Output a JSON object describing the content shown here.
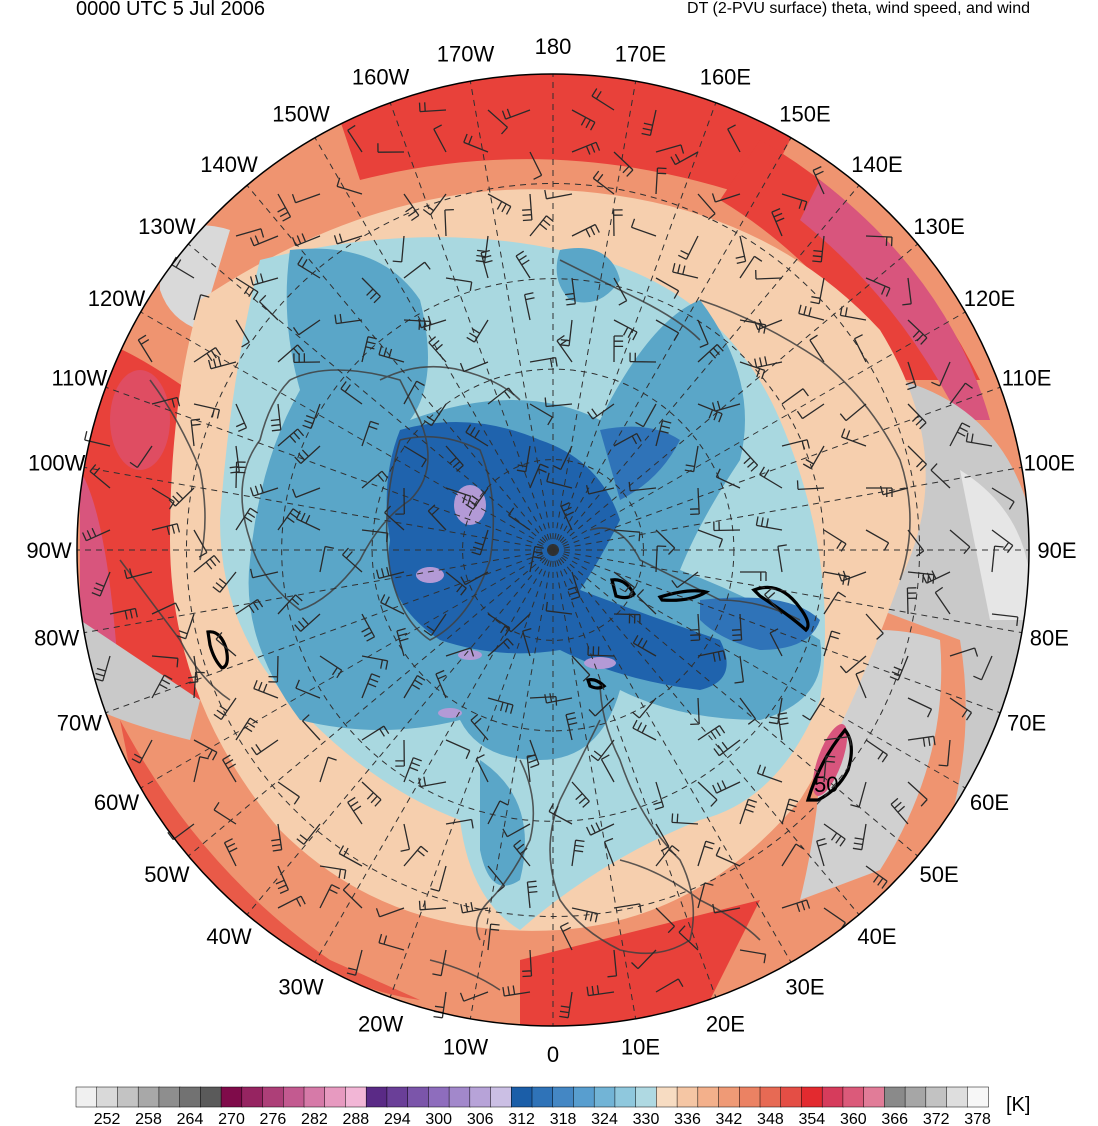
{
  "header": {
    "valid_time": "0000 UTC 5 Jul 2006",
    "product": "DT (2-PVU surface) theta, wind speed, and wind"
  },
  "map": {
    "projection": "north-polar-stereographic",
    "central_longitude_bottom": "0",
    "longitude_labels": [
      {
        "text": "180",
        "lon": 180
      },
      {
        "text": "170E",
        "lon": 170
      },
      {
        "text": "160E",
        "lon": 160
      },
      {
        "text": "150E",
        "lon": 150
      },
      {
        "text": "140E",
        "lon": 140
      },
      {
        "text": "130E",
        "lon": 130
      },
      {
        "text": "120E",
        "lon": 120
      },
      {
        "text": "110E",
        "lon": 110
      },
      {
        "text": "100E",
        "lon": 100
      },
      {
        "text": "90E",
        "lon": 90
      },
      {
        "text": "80E",
        "lon": 80
      },
      {
        "text": "70E",
        "lon": 70
      },
      {
        "text": "60E",
        "lon": 60
      },
      {
        "text": "50E",
        "lon": 50
      },
      {
        "text": "40E",
        "lon": 40
      },
      {
        "text": "30E",
        "lon": 30
      },
      {
        "text": "20E",
        "lon": 20
      },
      {
        "text": "10E",
        "lon": 10
      },
      {
        "text": "0",
        "lon": 0
      },
      {
        "text": "10W",
        "lon": -10
      },
      {
        "text": "20W",
        "lon": -20
      },
      {
        "text": "30W",
        "lon": -30
      },
      {
        "text": "40W",
        "lon": -40
      },
      {
        "text": "50W",
        "lon": -50
      },
      {
        "text": "60W",
        "lon": -60
      },
      {
        "text": "70W",
        "lon": -70
      },
      {
        "text": "80W",
        "lon": -80
      },
      {
        "text": "90W",
        "lon": -90
      },
      {
        "text": "100W",
        "lon": -100
      },
      {
        "text": "110W",
        "lon": -110
      },
      {
        "text": "120W",
        "lon": -120
      },
      {
        "text": "130W",
        "lon": -130
      },
      {
        "text": "140W",
        "lon": -140
      },
      {
        "text": "150W",
        "lon": -150
      },
      {
        "text": "160W",
        "lon": -160
      },
      {
        "text": "170W",
        "lon": -170
      }
    ],
    "wind_speed_contour_label": "50",
    "colors": {
      "very_cold_center": "#1f63ad",
      "cold": "#5aa6c8",
      "cool_pale": "#a9d8e0",
      "neutral_peach": "#f7d7b8",
      "warm": "#ef9470",
      "hot": "#e8413a",
      "very_hot_pink": "#d8557d",
      "gray_high": "#b8b8b8",
      "purple_min": "#b39ad6",
      "coast": "#404040"
    }
  },
  "colorbar": {
    "unit": "[K]",
    "tick_labels": [
      "252",
      "258",
      "264",
      "270",
      "276",
      "282",
      "288",
      "294",
      "300",
      "306",
      "312",
      "318",
      "324",
      "330",
      "336",
      "342",
      "348",
      "354",
      "360",
      "366",
      "372",
      "378"
    ],
    "swatch_colors": [
      "#f0f0f0",
      "#d9d9d9",
      "#c3c3c3",
      "#a8a8a8",
      "#8e8e8e",
      "#727272",
      "#5a5a5a",
      "#7f0b4a",
      "#962461",
      "#ad3f78",
      "#c35a90",
      "#d67aa8",
      "#e79ac0",
      "#f2b6d6",
      "#5a2a86",
      "#6a3f98",
      "#7b55aa",
      "#8e6dbd",
      "#a288cb",
      "#b7a3d8",
      "#cbbfe4",
      "#1b5ea8",
      "#2f73b8",
      "#4487c4",
      "#589ecf",
      "#72b4d6",
      "#8fc8dd",
      "#afd9e2",
      "#f7dcc2",
      "#f5c6a4",
      "#f3b08b",
      "#ef9a76",
      "#eb8263",
      "#e76a54",
      "#e44e45",
      "#e32a2f",
      "#d63c5c",
      "#db5a7a",
      "#e17c98",
      "#8a8a8a",
      "#a6a6a6",
      "#c2c2c2",
      "#dedede",
      "#f7f7f7"
    ]
  }
}
